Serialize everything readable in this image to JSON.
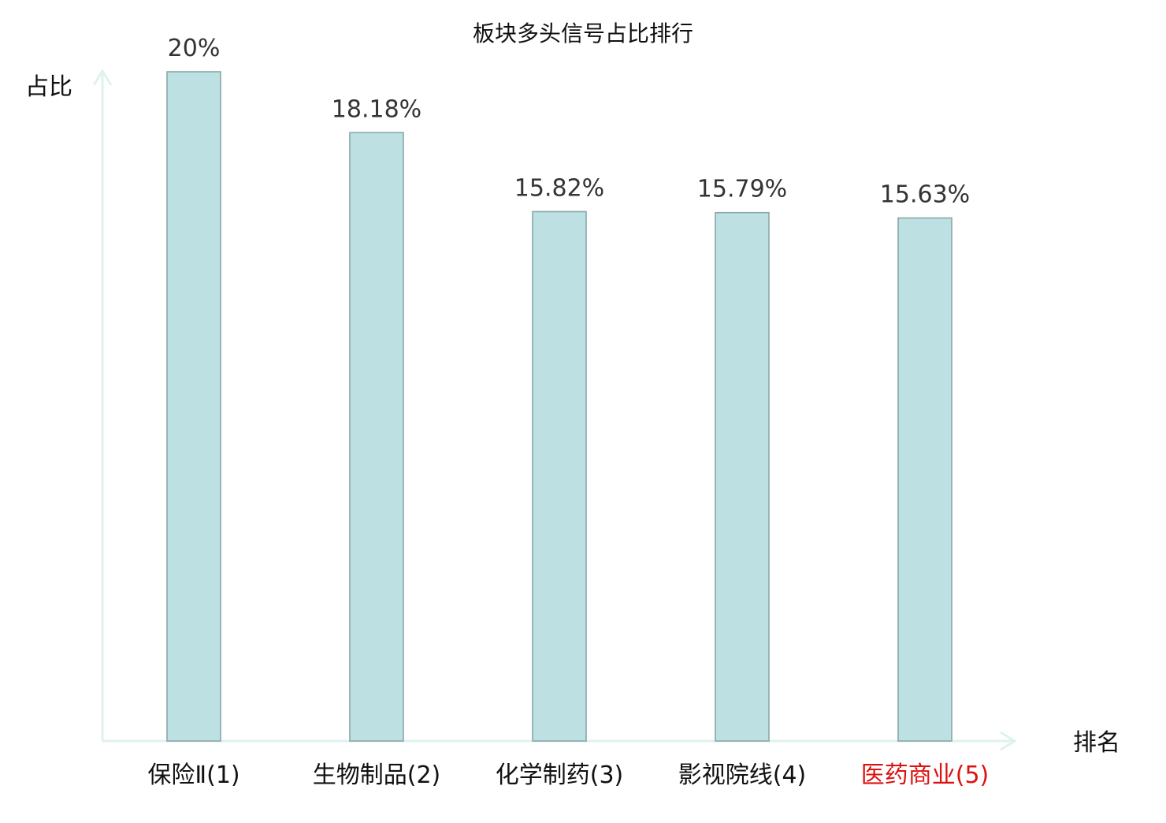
{
  "chart_data": {
    "type": "bar",
    "title": "板块多头信号占比排行",
    "ylabel": "占比",
    "xlabel": "排名",
    "categories": [
      "保险Ⅱ(1)",
      "生物制品(2)",
      "化学制药(3)",
      "影视院线(4)",
      "医药商业(5)"
    ],
    "values": [
      20,
      18.18,
      15.82,
      15.79,
      15.63
    ],
    "value_labels": [
      "20%",
      "18.18%",
      "15.82%",
      "15.79%",
      "15.63%"
    ],
    "highlight_index": 4,
    "ylim": [
      0,
      20
    ],
    "grid": false,
    "legend": "none"
  },
  "colors": {
    "bar_fill": "#bde1e2",
    "bar_stroke": "#8aa7a8",
    "axis": "#dff2ef",
    "highlight_text": "#dd1111",
    "label_text": "#111111",
    "value_text": "#333333"
  }
}
